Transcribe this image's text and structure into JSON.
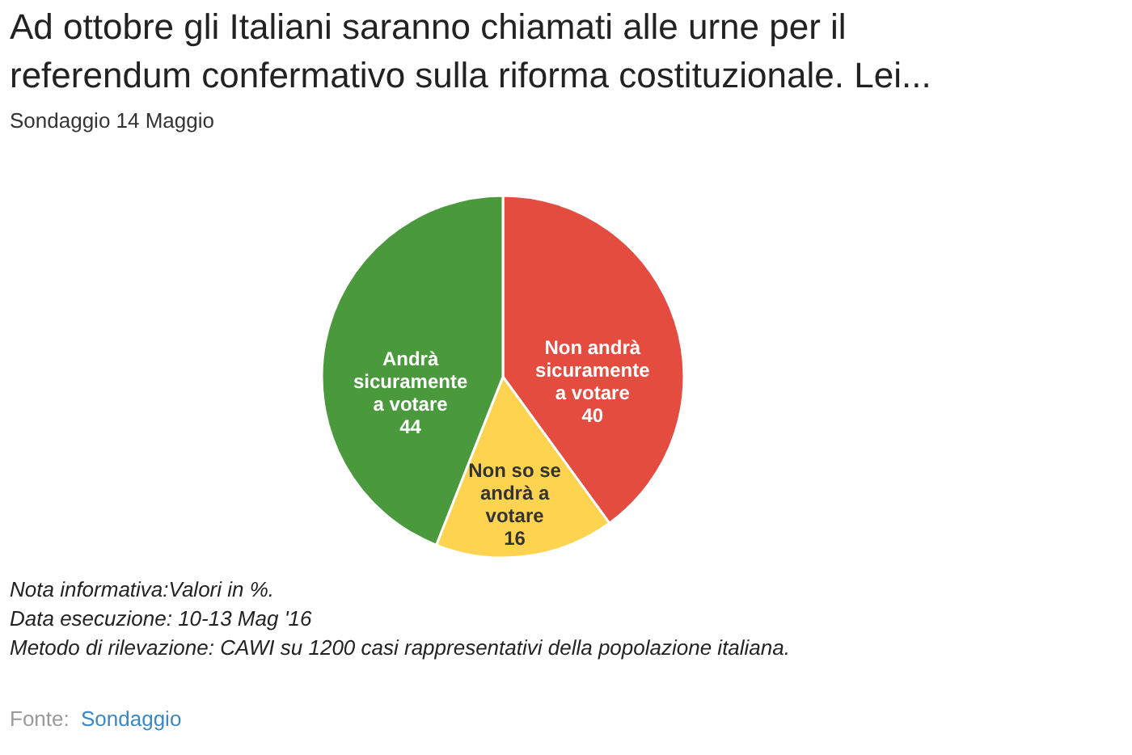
{
  "chart_data": {
    "type": "pie",
    "title": "Ad ottobre gli Italiani saranno chiamati alle urne per il referendum confermativo sulla riforma costituzionale. Lei...",
    "subtitle": "Sondaggio 14 Maggio",
    "categories": [
      "Non andrà sicuramente a votare",
      "Non so se andrà a votare",
      "Andrà sicuramente a votare"
    ],
    "values": [
      40,
      16,
      44
    ],
    "colors": [
      "#e44c40",
      "#fdd34f",
      "#4a9a3d"
    ],
    "data_labels": true,
    "legend": false,
    "annotations": [
      "Nota informativa:Valori in %.",
      "Data esecuzione: 10-13 Mag '16",
      "Metodo di rilevazione: CAWI su 1200 casi rappresentativi della popolazione italiana.",
      "Fonte: Sondaggio"
    ]
  }
}
